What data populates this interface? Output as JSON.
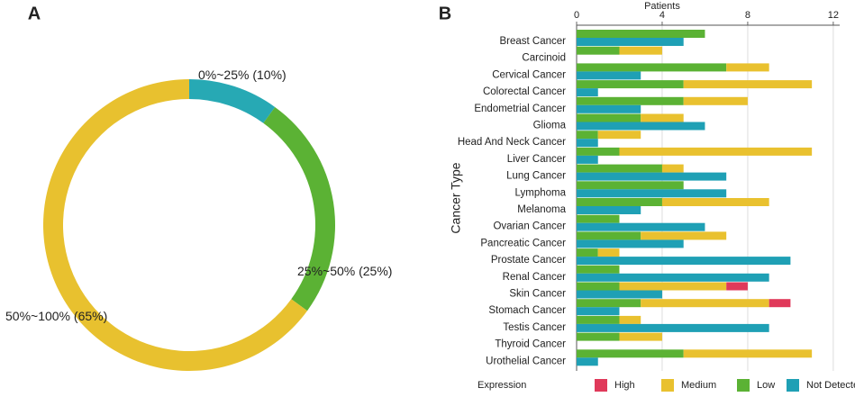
{
  "chart_data": [
    {
      "type": "pie",
      "panel": "A",
      "donut": true,
      "categories": [
        "0%~25%",
        "25%~50%",
        "50%~100%"
      ],
      "values": [
        10,
        25,
        65
      ],
      "value_labels": [
        "(10%)",
        "(25%)",
        "(65%)"
      ],
      "colors": [
        "#27a9b4",
        "#5bb234",
        "#e8c12f"
      ]
    },
    {
      "type": "bar",
      "panel": "B",
      "orientation": "horizontal",
      "xlabel": "Patients",
      "ylabel": "Cancer Type",
      "legend_title": "Expression",
      "categories": [
        "Breast Cancer",
        "Carcinoid",
        "Cervical Cancer",
        "Colorectal Cancer",
        "Endometrial Cancer",
        "Glioma",
        "Head And Neck Cancer",
        "Liver Cancer",
        "Lung Cancer",
        "Lymphoma",
        "Melanoma",
        "Ovarian Cancer",
        "Pancreatic Cancer",
        "Prostate Cancer",
        "Renal Cancer",
        "Skin Cancer",
        "Stomach Cancer",
        "Testis Cancer",
        "Thyroid Cancer",
        "Urothelial Cancer"
      ],
      "series": [
        {
          "name": "High",
          "color": "#e0395a",
          "values": [
            0,
            0,
            0,
            0,
            0,
            0,
            0,
            0,
            0,
            0,
            0,
            0,
            0,
            0,
            0,
            1,
            1,
            0,
            0,
            0
          ]
        },
        {
          "name": "Medium",
          "color": "#e9c12f",
          "values": [
            0,
            2,
            2,
            6,
            3,
            2,
            2,
            9,
            1,
            0,
            5,
            0,
            4,
            1,
            0,
            5,
            6,
            1,
            2,
            6
          ]
        },
        {
          "name": "Low",
          "color": "#5bb234",
          "values": [
            6,
            2,
            7,
            5,
            5,
            3,
            1,
            2,
            4,
            5,
            4,
            2,
            3,
            1,
            2,
            2,
            3,
            2,
            2,
            5
          ]
        },
        {
          "name": "Not Detected",
          "color": "#1fa0b5",
          "values": [
            5,
            0,
            3,
            1,
            3,
            6,
            1,
            1,
            7,
            7,
            3,
            6,
            5,
            10,
            9,
            4,
            2,
            9,
            0,
            1
          ]
        }
      ],
      "xlim": [
        0,
        12.3
      ],
      "xticks": [
        0,
        4,
        8,
        12
      ],
      "grid": true
    }
  ]
}
